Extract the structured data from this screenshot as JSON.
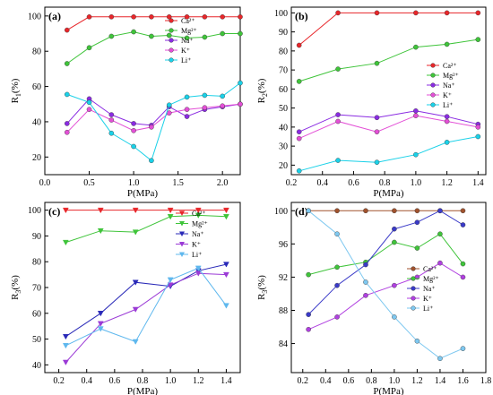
{
  "panel_ids": [
    "a",
    "b",
    "c",
    "d"
  ],
  "chart_data": [
    {
      "panel": "(a)",
      "type": "line",
      "xlabel": "P(MPa)",
      "ylabel": "R",
      "ylabel_sub": "1",
      "ylabel_suffix": "(%)",
      "xlim": [
        0.0,
        2.2
      ],
      "ylim": [
        10,
        105
      ],
      "xticks": [
        0.0,
        0.5,
        1.0,
        1.5,
        2.0
      ],
      "xtick_labels": [
        "0.0",
        "0.5",
        "1.0",
        "1.5",
        "2.0"
      ],
      "yticks": [
        20,
        40,
        60,
        80,
        100
      ],
      "ytick_labels": [
        "20",
        "40",
        "60",
        "80",
        "100"
      ],
      "legend": "right",
      "grid": false,
      "series": [
        {
          "name": "Ca²⁺",
          "color": "#e8262a",
          "marker": "circle",
          "x": [
            0.25,
            0.5,
            0.75,
            1.0,
            1.2,
            1.4,
            1.6,
            1.8,
            2.0,
            2.2
          ],
          "y": [
            92,
            99.5,
            99.5,
            99.5,
            99.5,
            99.5,
            99.5,
            99.5,
            99.5,
            99.5
          ]
        },
        {
          "name": "Mg²⁺",
          "color": "#3fc43a",
          "marker": "circle",
          "x": [
            0.25,
            0.5,
            0.75,
            1.0,
            1.2,
            1.4,
            1.6,
            1.8,
            2.0,
            2.2
          ],
          "y": [
            73,
            82,
            88.5,
            91,
            88.5,
            89,
            87.5,
            88,
            90,
            90
          ]
        },
        {
          "name": "Na⁺",
          "color": "#8a2be2",
          "marker": "circle",
          "x": [
            0.25,
            0.5,
            0.75,
            1.0,
            1.2,
            1.4,
            1.6,
            1.8,
            2.0,
            2.2
          ],
          "y": [
            39,
            53,
            44,
            39,
            38,
            48.5,
            43,
            47,
            48.5,
            50
          ]
        },
        {
          "name": "K⁺",
          "color": "#e34fd6",
          "marker": "circle",
          "x": [
            0.25,
            0.5,
            0.75,
            1.0,
            1.2,
            1.4,
            1.6,
            1.8,
            2.0,
            2.2
          ],
          "y": [
            34,
            47,
            41,
            35,
            37,
            45,
            47,
            48,
            49,
            50
          ]
        },
        {
          "name": "Li⁺",
          "color": "#1ad1e8",
          "marker": "circle",
          "x": [
            0.25,
            0.5,
            0.75,
            1.0,
            1.2,
            1.4,
            1.6,
            1.8,
            2.0,
            2.2
          ],
          "y": [
            55.5,
            51,
            33.5,
            26,
            18,
            49.5,
            54,
            55,
            54.5,
            62
          ]
        }
      ]
    },
    {
      "panel": "(b)",
      "type": "line",
      "xlabel": "P(MPa)",
      "ylabel": "R",
      "ylabel_sub": "2",
      "ylabel_suffix": "(%)",
      "xlim": [
        0.2,
        1.45
      ],
      "ylim": [
        15,
        103
      ],
      "xticks": [
        0.2,
        0.4,
        0.6,
        0.8,
        1.0,
        1.2,
        1.4
      ],
      "xtick_labels": [
        "0.2",
        "0.4",
        "0.6",
        "0.8",
        "1.0",
        "1.2",
        "1.4"
      ],
      "yticks": [
        20,
        30,
        40,
        50,
        60,
        70,
        80,
        90,
        100
      ],
      "ytick_labels": [
        "20",
        "30",
        "40",
        "50",
        "60",
        "70",
        "80",
        "90",
        "100"
      ],
      "legend": "right",
      "grid": false,
      "series": [
        {
          "name": "Ca²⁺",
          "color": "#e8262a",
          "marker": "circle",
          "x": [
            0.25,
            0.5,
            0.75,
            1.0,
            1.2,
            1.4
          ],
          "y": [
            83,
            100,
            100,
            100,
            100,
            100
          ]
        },
        {
          "name": "Mg²⁺",
          "color": "#3fc43a",
          "marker": "circle",
          "x": [
            0.25,
            0.5,
            0.75,
            1.0,
            1.2,
            1.4
          ],
          "y": [
            64,
            70.5,
            73.5,
            82,
            83.5,
            86
          ]
        },
        {
          "name": "Na⁺",
          "color": "#8a2be2",
          "marker": "circle",
          "x": [
            0.25,
            0.5,
            0.75,
            1.0,
            1.2,
            1.4
          ],
          "y": [
            37.5,
            46.5,
            45,
            48.5,
            45.5,
            41.5
          ]
        },
        {
          "name": "K⁺",
          "color": "#e34fd6",
          "marker": "circle",
          "x": [
            0.25,
            0.5,
            0.75,
            1.0,
            1.2,
            1.4
          ],
          "y": [
            34,
            43,
            37.5,
            46,
            43,
            40
          ]
        },
        {
          "name": "Li⁺",
          "color": "#1ad1e8",
          "marker": "circle",
          "x": [
            0.25,
            0.5,
            0.75,
            1.0,
            1.2,
            1.4
          ],
          "y": [
            17,
            22.5,
            21.5,
            25.5,
            32,
            35
          ]
        }
      ]
    },
    {
      "panel": "(c)",
      "type": "line",
      "xlabel": "P(MPa)",
      "ylabel": "R",
      "ylabel_sub": "3",
      "ylabel_suffix": "(%)",
      "xlim": [
        0.1,
        1.5
      ],
      "ylim": [
        37,
        103
      ],
      "xticks": [
        0.2,
        0.4,
        0.6,
        0.8,
        1.0,
        1.2,
        1.4
      ],
      "xtick_labels": [
        "0.2",
        "0.4",
        "0.6",
        "0.8",
        "1.0",
        "1.2",
        "1.4"
      ],
      "yticks": [
        40,
        50,
        60,
        70,
        80,
        90,
        100
      ],
      "ytick_labels": [
        "40",
        "50",
        "60",
        "70",
        "80",
        "90",
        "100"
      ],
      "legend": "right",
      "grid": false,
      "series": [
        {
          "name": "Ca²⁺",
          "color": "#e8262a",
          "marker": "triangle-down",
          "x": [
            0.25,
            0.5,
            0.75,
            1.0,
            1.2,
            1.4
          ],
          "y": [
            100,
            100,
            100,
            100,
            100,
            100
          ]
        },
        {
          "name": "Mg²⁺",
          "color": "#3fc43a",
          "marker": "triangle-down",
          "x": [
            0.25,
            0.5,
            0.75,
            1.0,
            1.2,
            1.4
          ],
          "y": [
            87.5,
            92,
            91.5,
            97.5,
            98,
            97.5
          ]
        },
        {
          "name": "Na⁺",
          "color": "#2a2ab8",
          "marker": "triangle-down",
          "x": [
            0.25,
            0.5,
            0.75,
            1.0,
            1.2,
            1.4
          ],
          "y": [
            51,
            60,
            72,
            70.5,
            76.5,
            79
          ]
        },
        {
          "name": "K⁺",
          "color": "#9b3bd6",
          "marker": "triangle-down",
          "x": [
            0.25,
            0.5,
            0.75,
            1.0,
            1.2,
            1.4
          ],
          "y": [
            41,
            56,
            61.5,
            71,
            75.5,
            75
          ]
        },
        {
          "name": "Li⁺",
          "color": "#5fb8ee",
          "marker": "triangle-down",
          "x": [
            0.25,
            0.5,
            0.75,
            1.0,
            1.2,
            1.4
          ],
          "y": [
            47.5,
            54,
            49,
            73,
            77.5,
            63
          ]
        }
      ]
    },
    {
      "panel": "(d)",
      "type": "line",
      "xlabel": "P(MPa)",
      "ylabel": "R",
      "ylabel_sub": "3",
      "ylabel_suffix": "(%)",
      "xlim": [
        0.1,
        1.8
      ],
      "ylim": [
        80.5,
        101
      ],
      "xticks": [
        0.2,
        0.4,
        0.6,
        0.8,
        1.0,
        1.2,
        1.4,
        1.6,
        1.8
      ],
      "xtick_labels": [
        "0.2",
        "0.4",
        "0.6",
        "0.8",
        "1.0",
        "1.2",
        "1.4",
        "1.6",
        "1.8"
      ],
      "yticks": [
        84,
        88,
        92,
        96,
        100
      ],
      "ytick_labels": [
        "84",
        "88",
        "92",
        "96",
        "100"
      ],
      "legend": "right",
      "grid": false,
      "series": [
        {
          "name": "Ca²⁺",
          "color": "#a0522d",
          "marker": "circle",
          "x": [
            0.25,
            0.5,
            0.75,
            1.0,
            1.2,
            1.4,
            1.6
          ],
          "y": [
            100,
            100,
            100,
            100,
            100,
            100,
            100
          ]
        },
        {
          "name": "Mg²⁺",
          "color": "#3fc43a",
          "marker": "circle",
          "x": [
            0.25,
            0.5,
            0.75,
            1.0,
            1.2,
            1.4,
            1.6
          ],
          "y": [
            92.3,
            93.2,
            93.8,
            96.2,
            95.5,
            97.2,
            93.6
          ]
        },
        {
          "name": "Na⁺",
          "color": "#3a3ac8",
          "marker": "circle",
          "x": [
            0.25,
            0.5,
            0.75,
            1.0,
            1.2,
            1.4,
            1.6
          ],
          "y": [
            87.5,
            91,
            93.5,
            97.8,
            98.6,
            100,
            98.3
          ]
        },
        {
          "name": "K⁺",
          "color": "#b040e0",
          "marker": "circle",
          "x": [
            0.25,
            0.5,
            0.75,
            1.0,
            1.2,
            1.4,
            1.6
          ],
          "y": [
            85.7,
            87.2,
            89.8,
            91,
            92,
            93.7,
            92
          ]
        },
        {
          "name": "Li⁺",
          "color": "#7ec8f0",
          "marker": "circle",
          "x": [
            0.25,
            0.5,
            0.75,
            1.0,
            1.2,
            1.4,
            1.6
          ],
          "y": [
            100,
            97.2,
            91.4,
            87.2,
            84.3,
            82.2,
            83.4
          ]
        }
      ]
    }
  ]
}
